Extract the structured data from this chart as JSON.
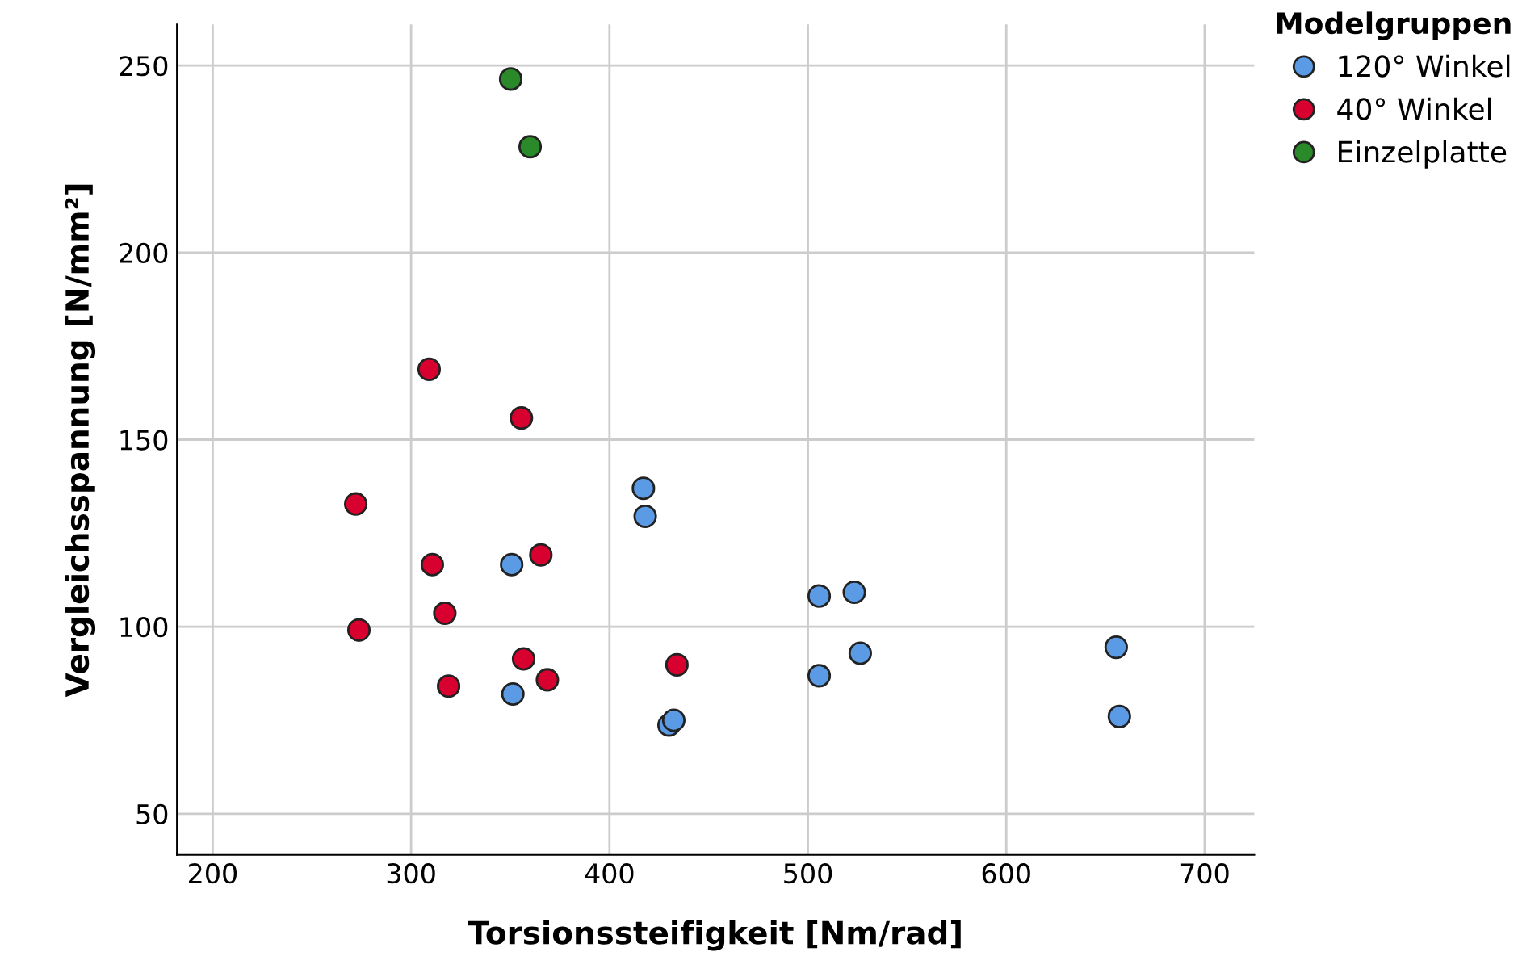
{
  "chart_data": {
    "type": "scatter",
    "xlabel": "Torsionssteifigkeit [Nm/rad]",
    "ylabel": "Vergleichsspannung [N/mm²]",
    "legend_title": "Modelgruppen",
    "legend": "top right",
    "grid": true,
    "marker": "circle",
    "xlim": [
      182,
      725
    ],
    "xticks": [
      200,
      300,
      400,
      500,
      600,
      700
    ],
    "ylim": [
      39,
      261
    ],
    "yticks": [
      50,
      100,
      150,
      200,
      250
    ],
    "series": [
      {
        "name": "120° Winkel",
        "color": "#5b9be6",
        "x": [
          350.7,
          351.3,
          417.1,
          418,
          430,
          432.4,
          505.7,
          523.4,
          526.4,
          505.7,
          655.4,
          657
        ],
        "values": [
          116.6,
          82.0,
          137.0,
          129.5,
          73.7,
          75.0,
          108.2,
          109.2,
          92.9,
          86.9,
          94.5,
          76.0
        ]
      },
      {
        "name": "40° Winkel",
        "color": "#d7002e",
        "x": [
          309.1,
          355.6,
          272.1,
          310.7,
          365.4,
          317,
          273.7,
          356.7,
          368.7,
          318.9,
          434
        ],
        "values": [
          168.8,
          155.8,
          132.8,
          116.6,
          119.2,
          103.6,
          99.1,
          91.4,
          85.8,
          84.1,
          89.8
        ]
      },
      {
        "name": "Einzelplatte",
        "color": "#2a8a2a",
        "x": [
          350.2,
          360
        ],
        "values": [
          246.4,
          228.3
        ]
      }
    ]
  }
}
